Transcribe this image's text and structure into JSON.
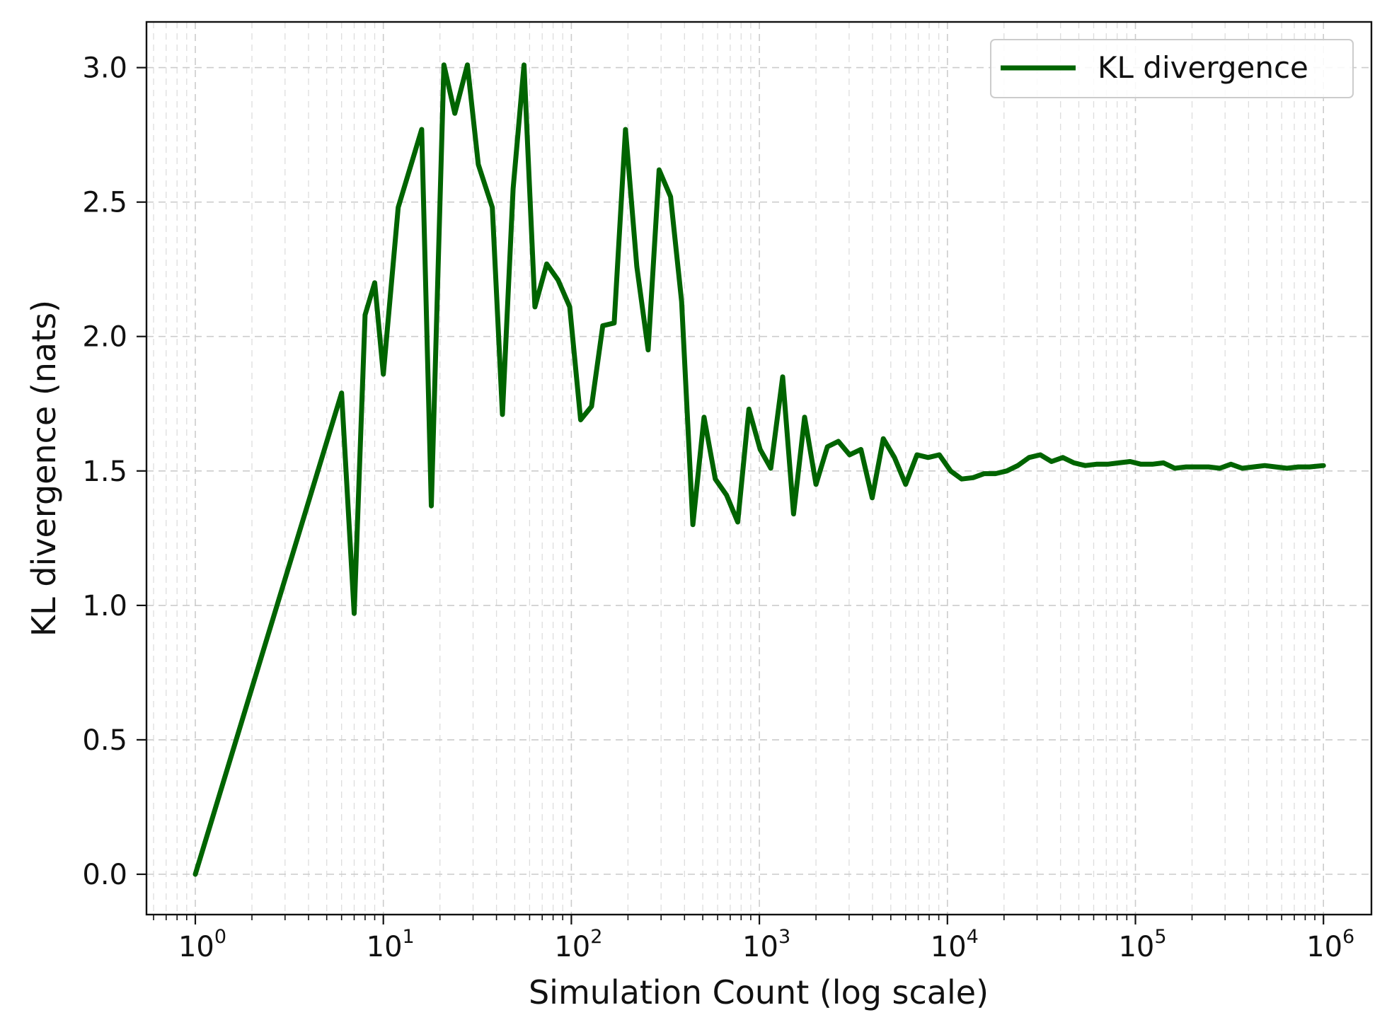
{
  "chart_data": {
    "type": "line",
    "xlabel": "Simulation Count (log scale)",
    "ylabel": "KL divergence (nats)",
    "xscale": "log",
    "xlim": [
      0.55,
      1800000
    ],
    "ylim": [
      -0.15,
      3.17
    ],
    "grid": true,
    "legend_position": "top-right",
    "x_ticks": [
      {
        "base": "10",
        "exp": "0"
      },
      {
        "base": "10",
        "exp": "1"
      },
      {
        "base": "10",
        "exp": "2"
      },
      {
        "base": "10",
        "exp": "3"
      },
      {
        "base": "10",
        "exp": "4"
      },
      {
        "base": "10",
        "exp": "5"
      },
      {
        "base": "10",
        "exp": "6"
      }
    ],
    "y_ticks": [
      "0.0",
      "0.5",
      "1.0",
      "1.5",
      "2.0",
      "2.5",
      "3.0"
    ],
    "series": [
      {
        "name": "KL divergence",
        "color": "#006400",
        "x": [
          1,
          6,
          7,
          8,
          9,
          10,
          12,
          16,
          18,
          21,
          24,
          28,
          32,
          38,
          43,
          49,
          56,
          64,
          74,
          85,
          98,
          112,
          128,
          147,
          169,
          194,
          223,
          256,
          293,
          337,
          386,
          443,
          508,
          583,
          669,
          767,
          880,
          1010,
          1150,
          1330,
          1520,
          1740,
          2000,
          2300,
          2630,
          3020,
          3470,
          3980,
          4560,
          5230,
          6000,
          6890,
          7900,
          9060,
          10400,
          11900,
          13700,
          15700,
          18000,
          20700,
          23700,
          27200,
          31200,
          35800,
          41100,
          47100,
          54100,
          62000,
          71200,
          81600,
          93700,
          107000,
          123000,
          141000,
          162000,
          186000,
          213000,
          245000,
          281000,
          322000,
          370000,
          424000,
          487000,
          558000,
          640000,
          735000,
          843000,
          1000000
        ],
        "y": [
          0.0,
          1.79,
          0.97,
          2.08,
          2.2,
          1.86,
          2.48,
          2.77,
          1.37,
          3.01,
          2.83,
          3.01,
          2.64,
          2.48,
          1.71,
          2.55,
          3.01,
          2.11,
          2.27,
          2.21,
          2.11,
          1.69,
          1.74,
          2.04,
          2.05,
          2.77,
          2.26,
          1.95,
          2.62,
          2.52,
          2.13,
          1.3,
          1.7,
          1.47,
          1.41,
          1.31,
          1.73,
          1.58,
          1.51,
          1.85,
          1.34,
          1.7,
          1.45,
          1.59,
          1.61,
          1.56,
          1.58,
          1.4,
          1.62,
          1.55,
          1.45,
          1.56,
          1.55,
          1.56,
          1.5,
          1.47,
          1.475,
          1.49,
          1.49,
          1.5,
          1.52,
          1.55,
          1.56,
          1.535,
          1.55,
          1.53,
          1.52,
          1.525,
          1.525,
          1.53,
          1.535,
          1.525,
          1.525,
          1.53,
          1.51,
          1.515,
          1.515,
          1.515,
          1.51,
          1.525,
          1.51,
          1.515,
          1.52,
          1.515,
          1.51,
          1.515,
          1.515,
          1.52
        ]
      }
    ]
  }
}
